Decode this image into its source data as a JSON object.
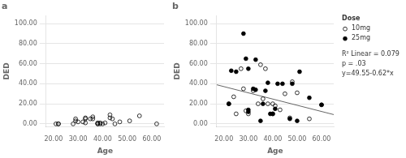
{
  "chart_data": [
    {
      "type": "scatter",
      "title": "a",
      "x_label": "Age",
      "y_label": "DED",
      "xlim": [
        17,
        65
      ],
      "xticks": [
        {
          "value": 20,
          "label": "20.00"
        },
        {
          "value": 30,
          "label": "30.00"
        },
        {
          "value": 40,
          "label": "40.00"
        },
        {
          "value": 50,
          "label": "50.00"
        },
        {
          "value": 60,
          "label": "60.00"
        }
      ],
      "ylim": [
        -3,
        108
      ],
      "yticks": [
        {
          "value": 0,
          "label": "0.00"
        },
        {
          "value": 20,
          "label": "20.00"
        },
        {
          "value": 40,
          "label": "40.00"
        },
        {
          "value": 60,
          "label": "60.00"
        },
        {
          "value": 80,
          "label": "80.00"
        },
        {
          "value": 100,
          "label": "100.00"
        }
      ],
      "grid": "y",
      "series": [
        {
          "color": "#000000",
          "marker": "open_circle",
          "x": [
            21,
            22,
            22,
            28,
            29,
            29,
            30,
            32,
            33,
            33,
            33,
            35,
            36,
            36,
            38,
            38,
            38,
            39,
            39,
            40,
            41,
            43,
            43,
            44,
            45,
            47,
            51,
            55,
            62
          ],
          "values": [
            0,
            0,
            0,
            0,
            5,
            3,
            2,
            2,
            5,
            6,
            1,
            5,
            5,
            7,
            0,
            0,
            1,
            1,
            0,
            0,
            1,
            9,
            6,
            5,
            0,
            2,
            3,
            8,
            0
          ]
        }
      ]
    },
    {
      "type": "scatter",
      "title": "b",
      "x_label": "Age",
      "y_label": "DED",
      "xlim": [
        17,
        65
      ],
      "xticks": [
        {
          "value": 20,
          "label": "20.00"
        },
        {
          "value": 30,
          "label": "30.00"
        },
        {
          "value": 40,
          "label": "40.00"
        },
        {
          "value": 50,
          "label": "50.00"
        },
        {
          "value": 60,
          "label": "60.00"
        }
      ],
      "ylim": [
        -3,
        108
      ],
      "yticks": [
        {
          "value": 0,
          "label": "0.00"
        },
        {
          "value": 20,
          "label": "20.00"
        },
        {
          "value": 40,
          "label": "40.00"
        },
        {
          "value": 60,
          "label": "60.00"
        },
        {
          "value": 80,
          "label": "80.00"
        },
        {
          "value": 100,
          "label": "100.00"
        }
      ],
      "grid": "y",
      "legend": "upper right",
      "legend_title": "Dose",
      "annotations": [
        "R² Linear = 0.079",
        "p = .03",
        "y=49.55-0.62*x"
      ],
      "series": [
        {
          "type": "line",
          "color": "#666666",
          "line_style": "solid",
          "x": [
            17,
            65
          ],
          "values": [
            39.01,
            9.25
          ]
        },
        {
          "name": "10mg",
          "color": "#000000",
          "marker": "open_circle",
          "x": [
            22,
            24,
            25,
            27,
            28,
            29,
            30,
            32,
            34,
            35,
            36,
            37,
            38,
            40,
            40,
            41,
            43,
            45,
            47,
            48,
            50,
            55,
            60
          ],
          "values": [
            20,
            27,
            10,
            55,
            35,
            13,
            10,
            33,
            20,
            59,
            25,
            55,
            20,
            10,
            20,
            18,
            14,
            30,
            6,
            42,
            31,
            5,
            19
          ]
        },
        {
          "name": "25mg",
          "color": "#000000",
          "marker": "circle",
          "x": [
            22,
            23,
            25,
            28,
            29,
            30,
            30,
            30,
            32,
            33,
            33,
            35,
            36,
            37,
            38,
            39,
            40,
            41,
            42,
            44,
            47,
            48,
            50,
            51,
            55,
            60
          ],
          "values": [
            20,
            53,
            52,
            90,
            65,
            14,
            12,
            55,
            35,
            34,
            64,
            3,
            20,
            33,
            41,
            10,
            10,
            15,
            40,
            40,
            5,
            40,
            3,
            52,
            26,
            19
          ]
        }
      ]
    }
  ]
}
